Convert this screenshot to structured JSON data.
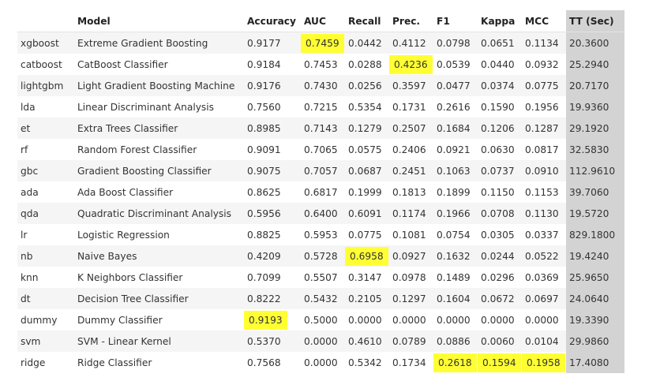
{
  "table": {
    "headers": [
      "",
      "Model",
      "Accuracy",
      "AUC",
      "Recall",
      "Prec.",
      "F1",
      "Kappa",
      "MCC",
      "TT (Sec)"
    ],
    "rows": [
      {
        "id": "xgboost",
        "model": "Extreme Gradient Boosting",
        "values": [
          "0.9177",
          "0.7459",
          "0.0442",
          "0.4112",
          "0.0798",
          "0.0651",
          "0.1134",
          "20.3600"
        ],
        "highlight": [
          1
        ]
      },
      {
        "id": "catboost",
        "model": "CatBoost Classifier",
        "values": [
          "0.9184",
          "0.7453",
          "0.0288",
          "0.4236",
          "0.0539",
          "0.0440",
          "0.0932",
          "25.2940"
        ],
        "highlight": [
          3
        ]
      },
      {
        "id": "lightgbm",
        "model": "Light Gradient Boosting Machine",
        "values": [
          "0.9176",
          "0.7430",
          "0.0256",
          "0.3597",
          "0.0477",
          "0.0374",
          "0.0775",
          "20.7170"
        ],
        "highlight": []
      },
      {
        "id": "lda",
        "model": "Linear Discriminant Analysis",
        "values": [
          "0.7560",
          "0.7215",
          "0.5354",
          "0.1731",
          "0.2616",
          "0.1590",
          "0.1956",
          "19.9360"
        ],
        "highlight": []
      },
      {
        "id": "et",
        "model": "Extra Trees Classifier",
        "values": [
          "0.8985",
          "0.7143",
          "0.1279",
          "0.2507",
          "0.1684",
          "0.1206",
          "0.1287",
          "29.1920"
        ],
        "highlight": []
      },
      {
        "id": "rf",
        "model": "Random Forest Classifier",
        "values": [
          "0.9091",
          "0.7065",
          "0.0575",
          "0.2406",
          "0.0921",
          "0.0630",
          "0.0817",
          "32.5830"
        ],
        "highlight": []
      },
      {
        "id": "gbc",
        "model": "Gradient Boosting Classifier",
        "values": [
          "0.9075",
          "0.7057",
          "0.0687",
          "0.2451",
          "0.1063",
          "0.0737",
          "0.0910",
          "112.9610"
        ],
        "highlight": []
      },
      {
        "id": "ada",
        "model": "Ada Boost Classifier",
        "values": [
          "0.8625",
          "0.6817",
          "0.1999",
          "0.1813",
          "0.1899",
          "0.1150",
          "0.1153",
          "39.7060"
        ],
        "highlight": []
      },
      {
        "id": "qda",
        "model": "Quadratic Discriminant Analysis",
        "values": [
          "0.5956",
          "0.6400",
          "0.6091",
          "0.1174",
          "0.1966",
          "0.0708",
          "0.1130",
          "19.5720"
        ],
        "highlight": []
      },
      {
        "id": "lr",
        "model": "Logistic Regression",
        "values": [
          "0.8825",
          "0.5953",
          "0.0775",
          "0.1081",
          "0.0754",
          "0.0305",
          "0.0337",
          "829.1800"
        ],
        "highlight": []
      },
      {
        "id": "nb",
        "model": "Naive Bayes",
        "values": [
          "0.4209",
          "0.5728",
          "0.6958",
          "0.0927",
          "0.1632",
          "0.0244",
          "0.0522",
          "19.4240"
        ],
        "highlight": [
          2
        ]
      },
      {
        "id": "knn",
        "model": "K Neighbors Classifier",
        "values": [
          "0.7099",
          "0.5507",
          "0.3147",
          "0.0978",
          "0.1489",
          "0.0296",
          "0.0369",
          "25.9650"
        ],
        "highlight": []
      },
      {
        "id": "dt",
        "model": "Decision Tree Classifier",
        "values": [
          "0.8222",
          "0.5432",
          "0.2105",
          "0.1297",
          "0.1604",
          "0.0672",
          "0.0697",
          "24.0640"
        ],
        "highlight": []
      },
      {
        "id": "dummy",
        "model": "Dummy Classifier",
        "values": [
          "0.9193",
          "0.5000",
          "0.0000",
          "0.0000",
          "0.0000",
          "0.0000",
          "0.0000",
          "19.3390"
        ],
        "highlight": [
          0
        ]
      },
      {
        "id": "svm",
        "model": "SVM - Linear Kernel",
        "values": [
          "0.5370",
          "0.0000",
          "0.4610",
          "0.0789",
          "0.0886",
          "0.0060",
          "0.0104",
          "29.9860"
        ],
        "highlight": []
      },
      {
        "id": "ridge",
        "model": "Ridge Classifier",
        "values": [
          "0.7568",
          "0.0000",
          "0.5342",
          "0.1734",
          "0.2618",
          "0.1594",
          "0.1958",
          "17.4080"
        ],
        "highlight": [
          4,
          5,
          6
        ]
      }
    ]
  },
  "colors": {
    "highlight": "#ffff33",
    "tt_column": "#d3d3d3",
    "stripe": "#f5f5f5"
  }
}
